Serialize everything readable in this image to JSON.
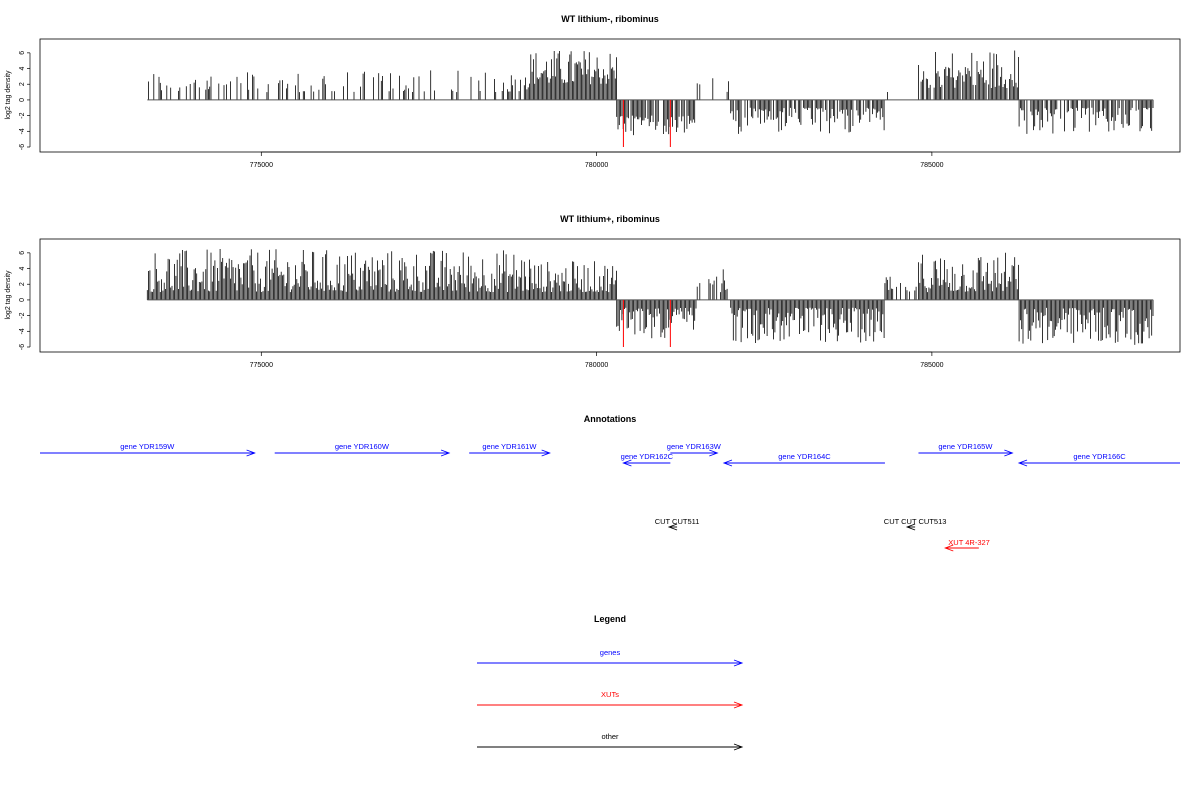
{
  "chart_data": [
    {
      "type": "bar",
      "title": "WT lithium-, ribominus",
      "ylabel": "log2 tag density",
      "ylim": [
        -6,
        7
      ],
      "yticks": [
        "-6",
        "-4",
        "-2",
        "0",
        "2",
        "4",
        "6"
      ],
      "xlim": [
        771700,
        788700
      ],
      "xticks": [
        "775000",
        "780000",
        "785000"
      ],
      "baseline": 0,
      "regions": [
        {
          "x0": 773300,
          "x1": 779000,
          "sign": 1,
          "density": 0.35,
          "min": 1.0,
          "max": 3.8
        },
        {
          "x0": 779000,
          "x1": 780300,
          "sign": 1,
          "density": 1.0,
          "min": 2.0,
          "max": 6.5
        },
        {
          "x0": 780300,
          "x1": 781500,
          "sign": -1,
          "density": 0.9,
          "min": 2.0,
          "max": 4.5
        },
        {
          "x0": 781500,
          "x1": 782000,
          "sign": 1,
          "density": 0.15,
          "min": 1.0,
          "max": 3.0
        },
        {
          "x0": 782000,
          "x1": 784300,
          "sign": -1,
          "density": 0.8,
          "min": 1.0,
          "max": 4.5
        },
        {
          "x0": 784300,
          "x1": 784800,
          "sign": 1,
          "density": 0.05,
          "min": 1.0,
          "max": 2.0
        },
        {
          "x0": 784800,
          "x1": 786300,
          "sign": 1,
          "density": 0.9,
          "min": 1.5,
          "max": 6.6
        },
        {
          "x0": 786300,
          "x1": 788300,
          "sign": -1,
          "density": 0.8,
          "min": 1.0,
          "max": 4.5
        }
      ],
      "highlights": [
        {
          "x": 780400,
          "value": -6,
          "color": "#ff0000"
        },
        {
          "x": 781100,
          "value": -6,
          "color": "#ff0000"
        }
      ]
    },
    {
      "type": "bar",
      "title": "WT lithium+, ribominus",
      "ylabel": "log2 tag density",
      "ylim": [
        -6,
        7
      ],
      "yticks": [
        "-6",
        "-4",
        "-2",
        "0",
        "2",
        "4",
        "6"
      ],
      "xlim": [
        771700,
        788700
      ],
      "xticks": [
        "775000",
        "780000",
        "785000"
      ],
      "baseline": 0,
      "regions": [
        {
          "x0": 773300,
          "x1": 779000,
          "sign": 1,
          "density": 1.0,
          "min": 1.0,
          "max": 6.5
        },
        {
          "x0": 779000,
          "x1": 780300,
          "sign": 1,
          "density": 1.0,
          "min": 1.0,
          "max": 5.0
        },
        {
          "x0": 780300,
          "x1": 781500,
          "sign": -1,
          "density": 1.0,
          "min": 1.0,
          "max": 5.0
        },
        {
          "x0": 781500,
          "x1": 782000,
          "sign": 1,
          "density": 0.7,
          "min": 1.0,
          "max": 4.0
        },
        {
          "x0": 782000,
          "x1": 784300,
          "sign": -1,
          "density": 1.0,
          "min": 1.0,
          "max": 5.5
        },
        {
          "x0": 784300,
          "x1": 784800,
          "sign": 1,
          "density": 0.5,
          "min": 1.0,
          "max": 3.0
        },
        {
          "x0": 784800,
          "x1": 786300,
          "sign": 1,
          "density": 1.0,
          "min": 1.0,
          "max": 6.2
        },
        {
          "x0": 786300,
          "x1": 788300,
          "sign": -1,
          "density": 1.0,
          "min": 1.0,
          "max": 5.8
        }
      ],
      "highlights": [
        {
          "x": 780400,
          "value": -6,
          "color": "#ff0000"
        },
        {
          "x": 781100,
          "value": -6,
          "color": "#ff0000"
        }
      ]
    }
  ],
  "annotations": {
    "title": "Annotations",
    "genes": [
      {
        "label": "gene YDR159W",
        "start": 771700,
        "end": 774900,
        "strand": "+"
      },
      {
        "label": "gene YDR160W",
        "start": 775200,
        "end": 777800,
        "strand": "+"
      },
      {
        "label": "gene YDR161W",
        "start": 778100,
        "end": 779300,
        "strand": "+"
      },
      {
        "label": "gene YDR162C",
        "start": 780400,
        "end": 781100,
        "strand": "-"
      },
      {
        "label": "gene YDR163W",
        "start": 781100,
        "end": 781800,
        "strand": "+"
      },
      {
        "label": "gene YDR164C",
        "start": 781900,
        "end": 784300,
        "strand": "-"
      },
      {
        "label": "gene YDR165W",
        "start": 784800,
        "end": 786200,
        "strand": "+"
      },
      {
        "label": "gene YDR166C",
        "start": 786300,
        "end": 788700,
        "strand": "-"
      }
    ],
    "others": [
      {
        "label": "CUT CUT511",
        "x": 781200
      },
      {
        "label": "CUT CUT CUT513",
        "x": 784750
      }
    ],
    "xuts": [
      {
        "label": "XUT 4R-327",
        "start": 785200,
        "end": 785700,
        "strand": "-"
      }
    ],
    "colors": {
      "gene": "#0000ff",
      "xut": "#ff0000",
      "other": "#000000"
    }
  },
  "legend": {
    "title": "Legend",
    "items": [
      {
        "label": "genes",
        "color": "#0000ff"
      },
      {
        "label": "XUTs",
        "color": "#ff0000"
      },
      {
        "label": "other",
        "color": "#000000"
      }
    ]
  }
}
